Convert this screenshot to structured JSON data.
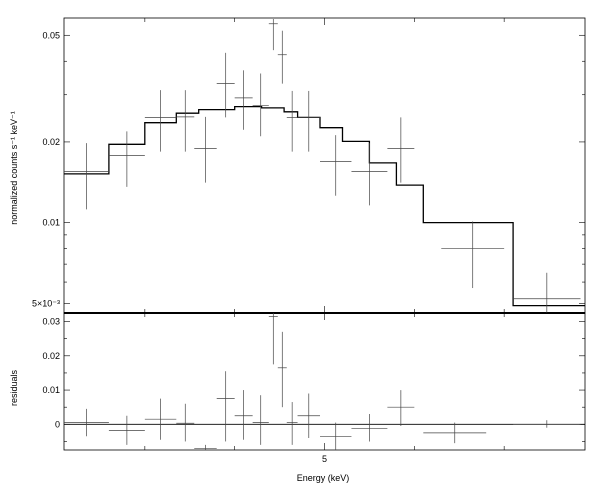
{
  "chart_data": [
    {
      "type": "scatter",
      "panel": "spectrum",
      "title": "",
      "xlabel": "",
      "ylabel": "normalized counts s⁻¹ keV⁻¹",
      "yscale": "log",
      "ylim": [
        0.0046,
        0.058
      ],
      "xlim": [
        2.1,
        7.9
      ],
      "y_ticks": [
        {
          "value": 0.005,
          "label": "5×10⁻³"
        },
        {
          "value": 0.01,
          "label": "0.01"
        },
        {
          "value": 0.02,
          "label": "0.02"
        },
        {
          "value": 0.05,
          "label": "0.05"
        }
      ],
      "data_points": [
        {
          "xlo": 2.1,
          "xhi": 2.6,
          "y": 0.0155,
          "ylo": 0.0112,
          "yhi": 0.0198
        },
        {
          "xlo": 2.6,
          "xhi": 3.0,
          "y": 0.0178,
          "ylo": 0.0136,
          "yhi": 0.0219
        },
        {
          "xlo": 3.0,
          "xhi": 3.35,
          "y": 0.0247,
          "ylo": 0.0184,
          "yhi": 0.0312
        },
        {
          "xlo": 3.35,
          "xhi": 3.55,
          "y": 0.0248,
          "ylo": 0.0184,
          "yhi": 0.0312
        },
        {
          "xlo": 3.55,
          "xhi": 3.8,
          "y": 0.0189,
          "ylo": 0.0141,
          "yhi": 0.0248
        },
        {
          "xlo": 3.8,
          "xhi": 4.0,
          "y": 0.033,
          "ylo": 0.0247,
          "yhi": 0.043
        },
        {
          "xlo": 4.0,
          "xhi": 4.2,
          "y": 0.0292,
          "ylo": 0.0222,
          "yhi": 0.037
        },
        {
          "xlo": 4.2,
          "xhi": 4.38,
          "y": 0.0274,
          "ylo": 0.021,
          "yhi": 0.036
        },
        {
          "xlo": 4.38,
          "xhi": 4.48,
          "y": 0.0552,
          "ylo": 0.044,
          "yhi": 0.0575
        },
        {
          "xlo": 4.48,
          "xhi": 4.58,
          "y": 0.0423,
          "ylo": 0.033,
          "yhi": 0.052
        },
        {
          "xlo": 4.58,
          "xhi": 4.7,
          "y": 0.0247,
          "ylo": 0.0184,
          "yhi": 0.031
        },
        {
          "xlo": 4.7,
          "xhi": 4.95,
          "y": 0.0247,
          "ylo": 0.0184,
          "yhi": 0.031
        },
        {
          "xlo": 4.95,
          "xhi": 5.3,
          "y": 0.0169,
          "ylo": 0.0126,
          "yhi": 0.0212
        },
        {
          "xlo": 5.3,
          "xhi": 5.7,
          "y": 0.0155,
          "ylo": 0.0116,
          "yhi": 0.0198
        },
        {
          "xlo": 5.7,
          "xhi": 6.0,
          "y": 0.0189,
          "ylo": 0.0141,
          "yhi": 0.0247
        },
        {
          "xlo": 6.3,
          "xhi": 7.0,
          "y": 0.008,
          "ylo": 0.0057,
          "yhi": 0.0101
        },
        {
          "xlo": 7.1,
          "xhi": 7.85,
          "y": 0.0052,
          "ylo": 0.0046,
          "yhi": 0.0065
        }
      ],
      "model_steps": [
        {
          "xlo": 2.1,
          "xhi": 2.6,
          "y": 0.0152
        },
        {
          "xlo": 2.6,
          "xhi": 3.0,
          "y": 0.0196
        },
        {
          "xlo": 3.0,
          "xhi": 3.35,
          "y": 0.0236
        },
        {
          "xlo": 3.35,
          "xhi": 3.6,
          "y": 0.0256
        },
        {
          "xlo": 3.6,
          "xhi": 4.0,
          "y": 0.0264
        },
        {
          "xlo": 4.0,
          "xhi": 4.3,
          "y": 0.0271
        },
        {
          "xlo": 4.3,
          "xhi": 4.55,
          "y": 0.0268
        },
        {
          "xlo": 4.55,
          "xhi": 4.7,
          "y": 0.0259
        },
        {
          "xlo": 4.7,
          "xhi": 4.95,
          "y": 0.0247
        },
        {
          "xlo": 4.95,
          "xhi": 5.2,
          "y": 0.0226
        },
        {
          "xlo": 5.2,
          "xhi": 5.5,
          "y": 0.0201
        },
        {
          "xlo": 5.5,
          "xhi": 5.8,
          "y": 0.0167
        },
        {
          "xlo": 5.8,
          "xhi": 6.1,
          "y": 0.0138
        },
        {
          "xlo": 6.1,
          "xhi": 6.4,
          "y": 0.01
        },
        {
          "xlo": 6.4,
          "xhi": 7.1,
          "y": 0.01
        },
        {
          "xlo": 7.1,
          "xhi": 7.9,
          "y": 0.0049
        }
      ]
    },
    {
      "type": "scatter",
      "panel": "residuals",
      "title": "",
      "xlabel": "Energy (keV)",
      "ylabel": "residuals",
      "ylim": [
        -0.0075,
        0.0325
      ],
      "xlim": [
        2.1,
        7.9
      ],
      "y_ticks": [
        {
          "value": 0,
          "label": "0"
        },
        {
          "value": 0.01,
          "label": "0.01"
        },
        {
          "value": 0.02,
          "label": "0.02"
        },
        {
          "value": 0.03,
          "label": "0.03"
        }
      ],
      "x_ticks": [
        {
          "value": 5,
          "label": "5"
        }
      ],
      "zero_line": 0,
      "data_points": [
        {
          "xlo": 2.1,
          "xhi": 2.6,
          "y": 0.0005,
          "ylo": -0.0035,
          "yhi": 0.0045
        },
        {
          "xlo": 2.6,
          "xhi": 3.0,
          "y": -0.0018,
          "ylo": -0.006,
          "yhi": 0.0025
        },
        {
          "xlo": 3.0,
          "xhi": 3.35,
          "y": 0.0015,
          "ylo": -0.0045,
          "yhi": 0.0075
        },
        {
          "xlo": 3.35,
          "xhi": 3.55,
          "y": 0.0003,
          "ylo": -0.005,
          "yhi": 0.006
        },
        {
          "xlo": 3.55,
          "xhi": 3.8,
          "y": -0.007,
          "ylo": -0.0075,
          "yhi": -0.006
        },
        {
          "xlo": 3.8,
          "xhi": 4.0,
          "y": 0.0075,
          "ylo": -0.005,
          "yhi": 0.0155
        },
        {
          "xlo": 4.0,
          "xhi": 4.2,
          "y": 0.0025,
          "ylo": -0.0045,
          "yhi": 0.01
        },
        {
          "xlo": 4.2,
          "xhi": 4.38,
          "y": 0.0005,
          "ylo": -0.006,
          "yhi": 0.0085
        },
        {
          "xlo": 4.38,
          "xhi": 4.48,
          "y": 0.0315,
          "ylo": 0.0175,
          "yhi": 0.0325
        },
        {
          "xlo": 4.48,
          "xhi": 4.58,
          "y": 0.0165,
          "ylo": 0.005,
          "yhi": 0.027
        },
        {
          "xlo": 4.58,
          "xhi": 4.7,
          "y": 0.0005,
          "ylo": -0.006,
          "yhi": 0.0065
        },
        {
          "xlo": 4.7,
          "xhi": 4.95,
          "y": 0.0025,
          "ylo": -0.004,
          "yhi": 0.009
        },
        {
          "xlo": 4.95,
          "xhi": 5.3,
          "y": -0.0035,
          "ylo": -0.0075,
          "yhi": 0.0005
        },
        {
          "xlo": 5.3,
          "xhi": 5.7,
          "y": -0.0012,
          "ylo": -0.005,
          "yhi": 0.003
        },
        {
          "xlo": 5.7,
          "xhi": 6.0,
          "y": 0.005,
          "ylo": -0.0005,
          "yhi": 0.01
        },
        {
          "xlo": 6.1,
          "xhi": 6.8,
          "y": -0.0025,
          "ylo": -0.0055,
          "yhi": 0.0005
        },
        {
          "xlo": 7.1,
          "xhi": 7.85,
          "y": 0.0,
          "ylo": -0.001,
          "yhi": 0.0012
        }
      ]
    }
  ]
}
